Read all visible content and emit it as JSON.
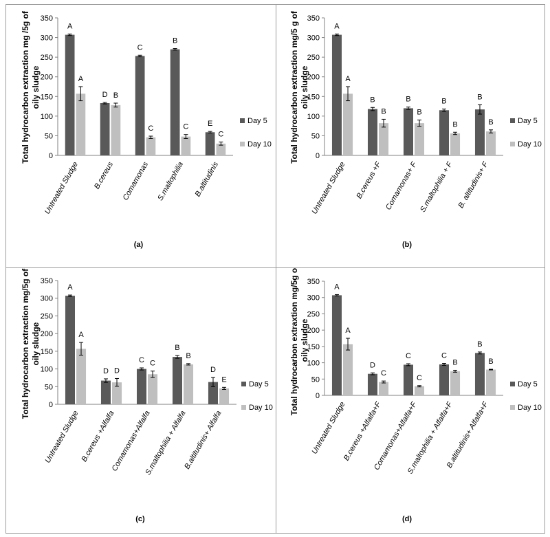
{
  "colors": {
    "day5": "#595959",
    "day10": "#bfbfbf",
    "axis": "#808080",
    "error": "#000000"
  },
  "chart_data": [
    {
      "panel_label": "(a)",
      "type": "bar",
      "ylabel": "Total hydrocarbon extraction mg /5g of oily sludge",
      "ylim": [
        0,
        350
      ],
      "yticks": [
        0,
        50,
        100,
        150,
        200,
        250,
        300,
        350
      ],
      "legend_position": "right",
      "categories": [
        "Untreated Sludge",
        "B.cereus",
        "Comamonas",
        "S.maltophilia",
        "B.altitudinis"
      ],
      "series": [
        {
          "name": "Day 5",
          "values": [
            307,
            133,
            253,
            270,
            59
          ],
          "errors": [
            2,
            2,
            2,
            2,
            2
          ],
          "letters": [
            "A",
            "D",
            "C",
            "B",
            "E"
          ]
        },
        {
          "name": "Day 10",
          "values": [
            157,
            128,
            46,
            48,
            30
          ],
          "errors": [
            18,
            5,
            3,
            5,
            4
          ],
          "letters": [
            "A",
            "B",
            "C",
            "C",
            "C"
          ]
        }
      ]
    },
    {
      "panel_label": "(b)",
      "type": "bar",
      "ylabel": "Total hydrocarbon extraction mg/5 g of oily sludge",
      "ylim": [
        0,
        350
      ],
      "yticks": [
        0,
        50,
        100,
        150,
        200,
        250,
        300,
        350
      ],
      "legend_position": "right",
      "categories": [
        "Untreated Sludge",
        "B.cereus +F",
        "Comamonas+ F",
        "S.maltophilia + F",
        "B. altitudinis+ F"
      ],
      "series": [
        {
          "name": "Day 5",
          "values": [
            307,
            118,
            120,
            115,
            117
          ],
          "errors": [
            2,
            4,
            3,
            3,
            12
          ],
          "letters": [
            "A",
            "B",
            "B",
            "B",
            "B"
          ]
        },
        {
          "name": "Day 10",
          "values": [
            157,
            82,
            82,
            56,
            61
          ],
          "errors": [
            18,
            10,
            8,
            3,
            4
          ],
          "letters": [
            "A",
            "B",
            "B",
            "B",
            "B"
          ]
        }
      ]
    },
    {
      "panel_label": "(c)",
      "type": "bar",
      "ylabel": "Total hydrocarbon extraction mg/5g of oily sludge",
      "ylim": [
        0,
        350
      ],
      "yticks": [
        0,
        50,
        100,
        150,
        200,
        250,
        300,
        350
      ],
      "legend_position": "right",
      "categories": [
        "Untreated Sludge",
        "B.cereus +Alfalfa",
        "Comamonas+Alfalfa",
        "S.maltophilia + Alfalfa",
        "B.altitudinis+ Alfalfa"
      ],
      "series": [
        {
          "name": "Day 5",
          "values": [
            307,
            67,
            100,
            134,
            63
          ],
          "errors": [
            2,
            5,
            3,
            4,
            13
          ],
          "letters": [
            "A",
            "D",
            "C",
            "B",
            "D"
          ]
        },
        {
          "name": "Day 10",
          "values": [
            157,
            62,
            85,
            113,
            45
          ],
          "errors": [
            18,
            11,
            9,
            2,
            3
          ],
          "letters": [
            "A",
            "D",
            "C",
            "B",
            "E"
          ]
        }
      ]
    },
    {
      "panel_label": "(d)",
      "type": "bar",
      "ylabel": "Total hydrocarbon extraxtion mg/5g of oily sludge",
      "ylim": [
        0,
        350
      ],
      "yticks": [
        0,
        50,
        100,
        150,
        200,
        250,
        300,
        350
      ],
      "legend_position": "right",
      "categories": [
        "Untreated Sludge",
        "B.cereus +Alfalfa+F",
        "Comamonas+Alfalfa+F",
        "S.maltophilia + Alfalfa+F",
        "B.altitudinis+ Alfalfa+F"
      ],
      "series": [
        {
          "name": "Day 5",
          "values": [
            307,
            66,
            94,
            95,
            130
          ],
          "errors": [
            2,
            3,
            3,
            3,
            3
          ],
          "letters": [
            "A",
            "D",
            "C",
            "C",
            "B"
          ]
        },
        {
          "name": "Day 10",
          "values": [
            157,
            41,
            28,
            74,
            79
          ],
          "errors": [
            18,
            3,
            2,
            3,
            1
          ],
          "letters": [
            "A",
            "C",
            "C",
            "B",
            "B"
          ]
        }
      ]
    }
  ]
}
